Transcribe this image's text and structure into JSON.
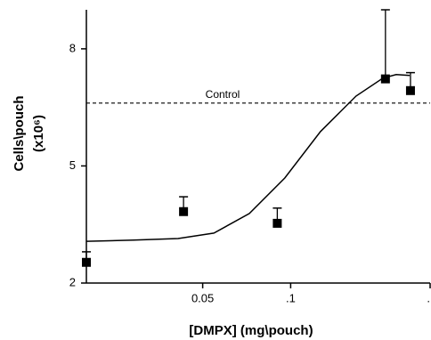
{
  "chart_data": {
    "type": "scatter",
    "xlabel": "[DMPX] (mg\\pouch)",
    "ylabel": "Cells\\pouch",
    "ylabel_unit": "(x10⁶)",
    "xscale": "log",
    "xlim": [
      0.02,
      0.3
    ],
    "xticks": [
      0.05,
      {
        "value": 0.1,
        "label": ".1"
      },
      {
        "value": 0.3,
        "label": "."
      }
    ],
    "ylim": [
      2,
      9
    ],
    "yticks": [
      2,
      5,
      8
    ],
    "color": "#000000",
    "points": {
      "x": [
        0.02,
        0.043,
        0.09,
        0.211,
        0.257
      ],
      "y": [
        2.53,
        3.83,
        3.53,
        7.23,
        6.93
      ],
      "error": [
        0.27,
        0.38,
        0.39,
        1.77,
        0.46
      ]
    },
    "curve": {
      "x": [
        0.02,
        0.029,
        0.0412,
        0.0546,
        0.0722,
        0.0955,
        0.1265,
        0.1675,
        0.2068,
        0.2297,
        0.2553
      ],
      "y": [
        3.07,
        3.1,
        3.14,
        3.28,
        3.78,
        4.69,
        5.88,
        6.79,
        7.25,
        7.34,
        7.32
      ]
    },
    "control": {
      "value": 6.61,
      "label": "Control"
    }
  }
}
